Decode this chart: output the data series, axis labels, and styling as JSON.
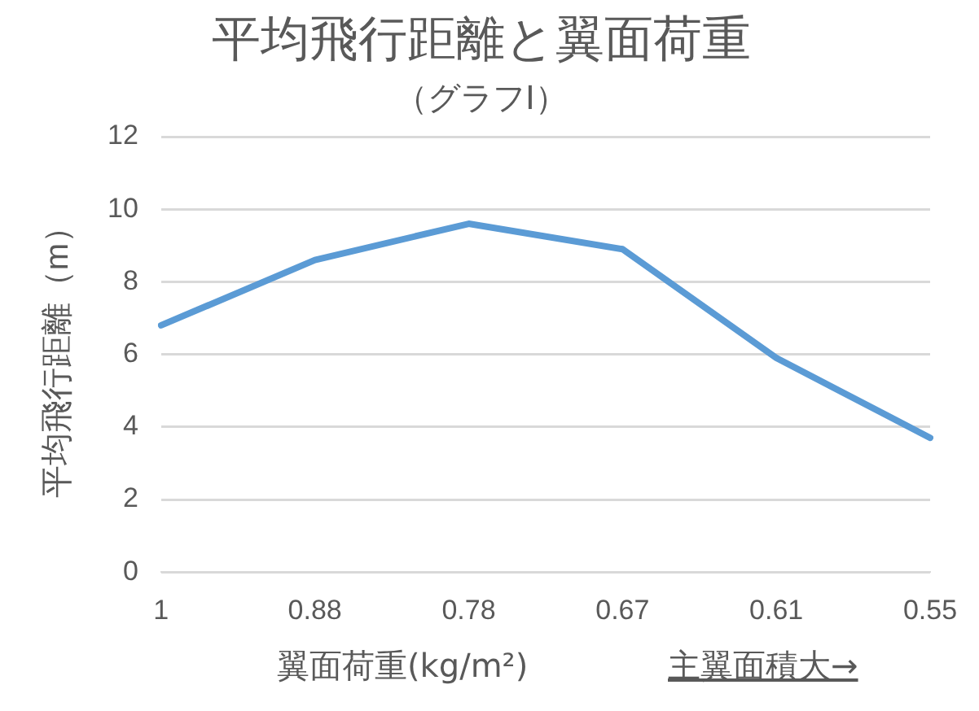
{
  "chart_data": {
    "type": "line",
    "title": "平均飛行距離と翼面荷重",
    "subtitle": "（グラフⅠ）",
    "xlabel": "翼面荷重(kg/m²)",
    "ylabel": "平均飛行距離（m）",
    "annotations": [
      "主翼面積大→"
    ],
    "categories": [
      "1",
      "0.88",
      "0.78",
      "0.67",
      "0.61",
      "0.55"
    ],
    "series": [
      {
        "color": "#5b9bd5",
        "values": [
          6.8,
          8.6,
          9.6,
          8.9,
          5.9,
          3.7
        ]
      }
    ],
    "ylim": [
      0,
      12
    ],
    "yticks": [
      0,
      2,
      4,
      6,
      8,
      10,
      12
    ],
    "grid": "y",
    "legend": false,
    "marker": "none",
    "line_style": "solid"
  }
}
